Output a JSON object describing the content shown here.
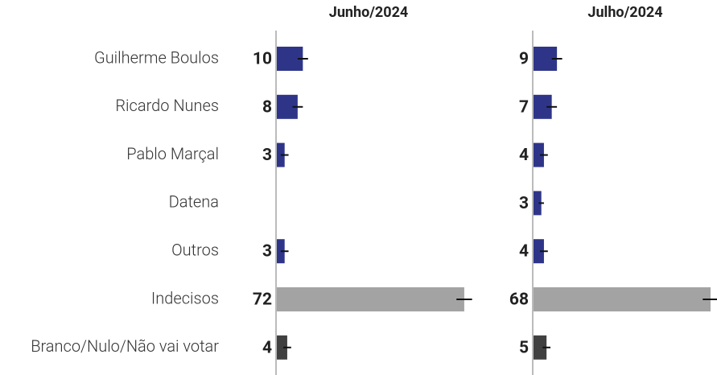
{
  "chart_data": {
    "type": "bar",
    "categories": [
      "Guilherme Boulos",
      "Ricardo Nunes",
      "Pablo Marçal",
      "Datena",
      "Outros",
      "Indecisos",
      "Branco/Nulo/Não vai votar"
    ],
    "colors": [
      "#2e3589",
      "#2e3589",
      "#2e3589",
      "#2e3589",
      "#2e3589",
      "#a3a3a3",
      "#404040"
    ],
    "series": [
      {
        "name": "Junho/2024",
        "values": [
          10,
          8,
          3,
          null,
          3,
          72,
          4
        ],
        "errors": [
          2,
          2,
          1.5,
          null,
          1.5,
          3,
          1.5
        ]
      },
      {
        "name": "Julho/2024",
        "values": [
          9,
          7,
          4,
          3,
          4,
          68,
          5
        ],
        "errors": [
          2,
          2,
          1.5,
          1,
          1.5,
          3,
          1.5
        ]
      }
    ]
  }
}
